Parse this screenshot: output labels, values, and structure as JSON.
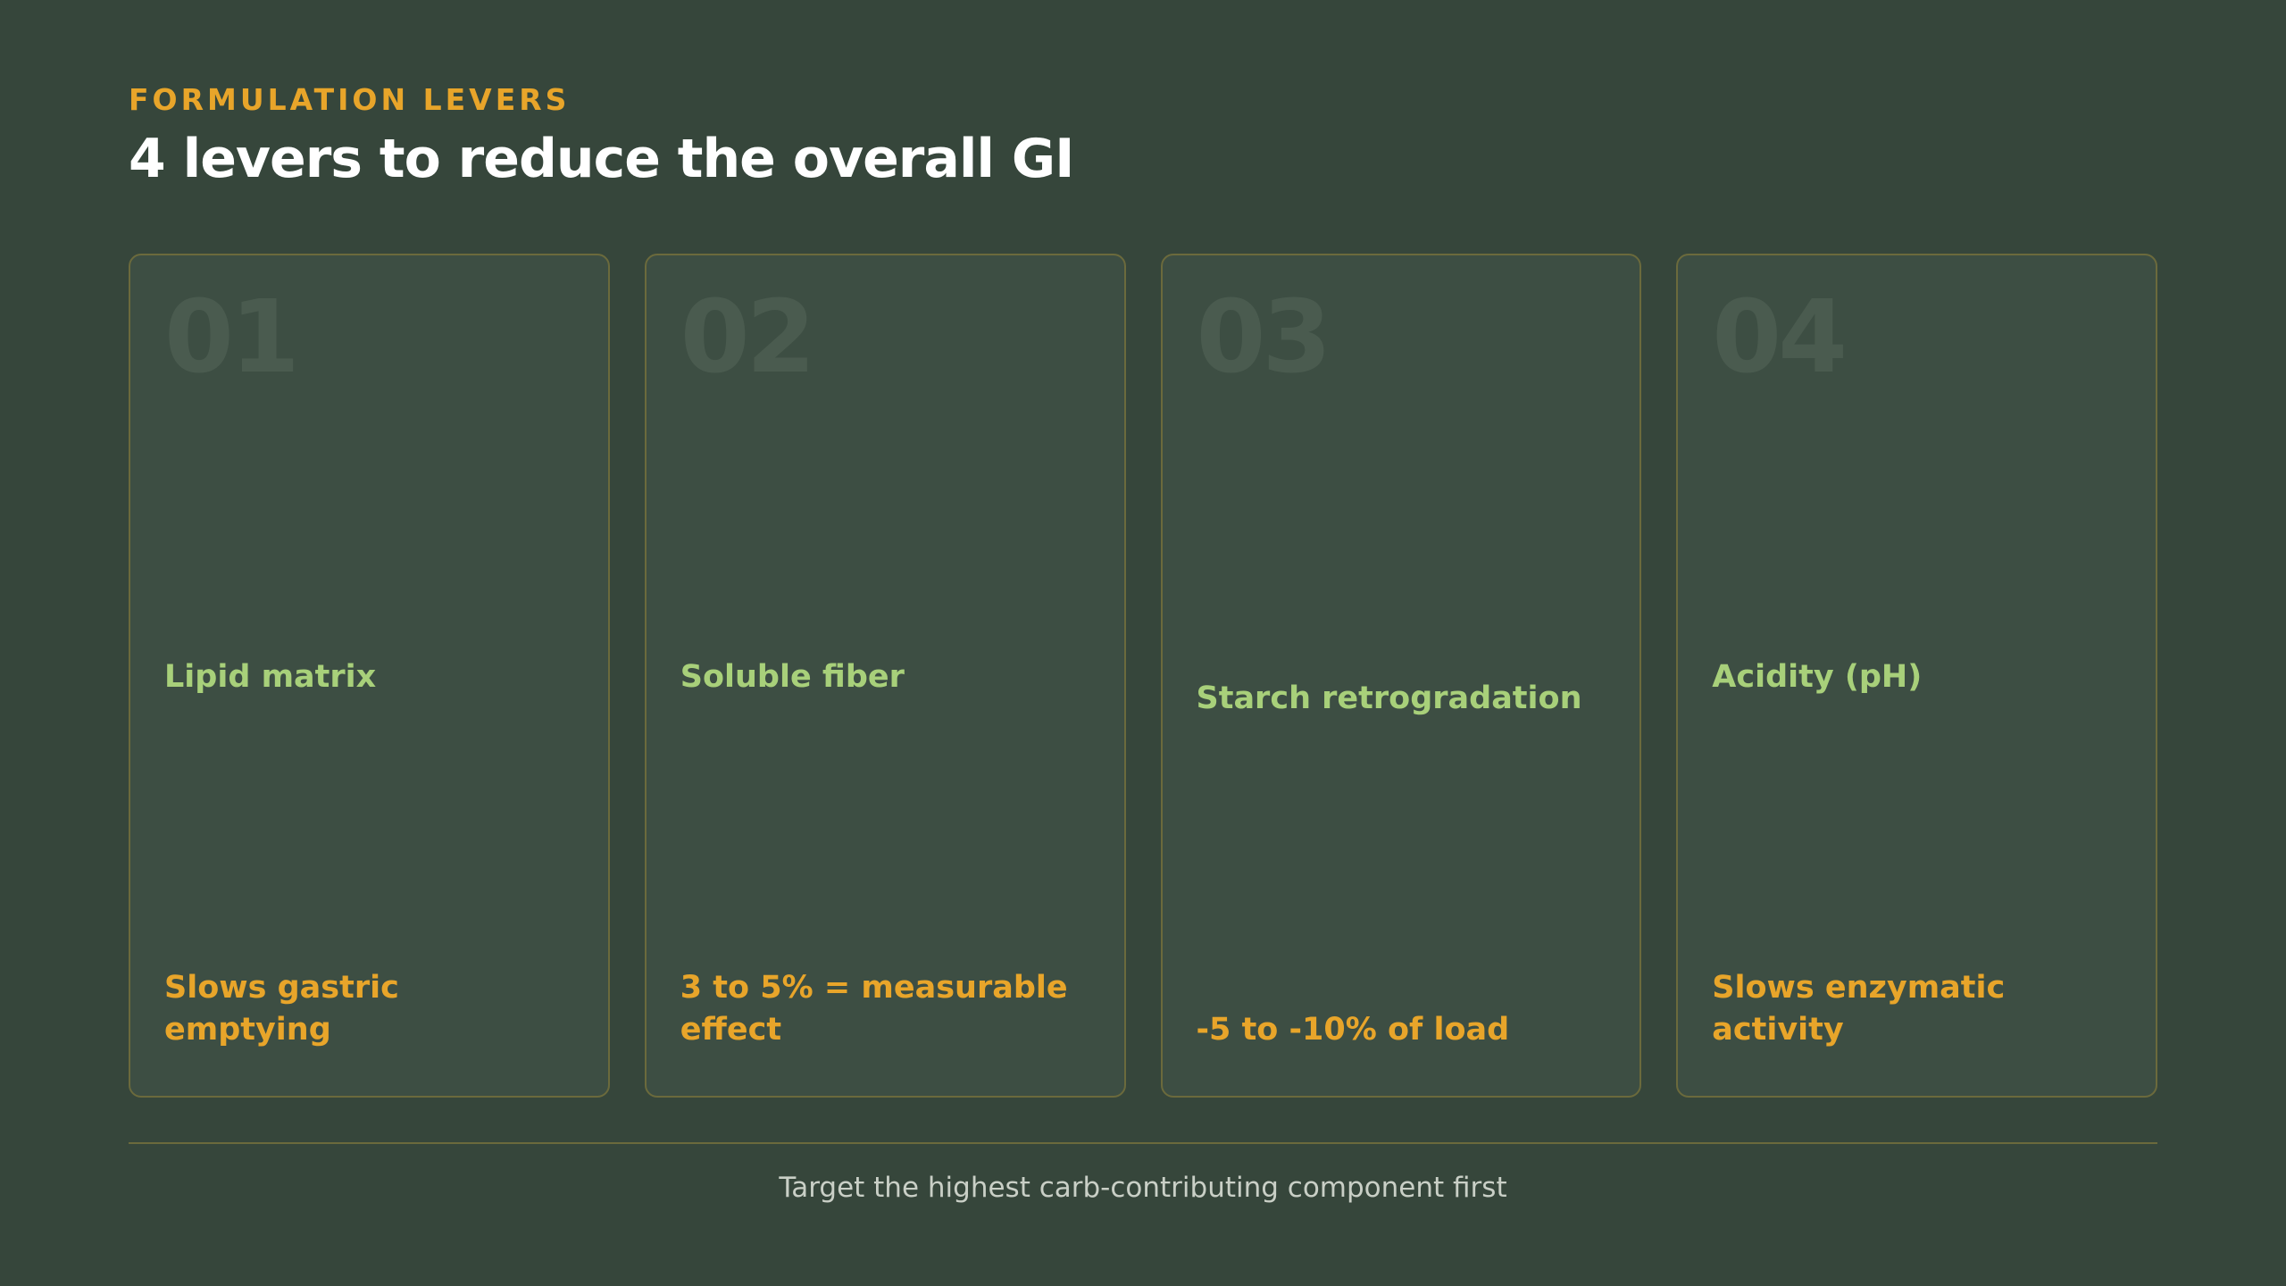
{
  "header": {
    "eyebrow": "FORMULATION LEVERS",
    "title": "4 levers to reduce the overall GI"
  },
  "cards": [
    {
      "number": "01",
      "label": "Lipid matrix",
      "detail": "Slows gastric emptying"
    },
    {
      "number": "02",
      "label": "Soluble fiber",
      "detail": "3 to 5% = measurable effect"
    },
    {
      "number": "03",
      "label": "Starch retrogradation",
      "detail": "-5 to -10% of load"
    },
    {
      "number": "04",
      "label": "Acidity (pH)",
      "detail": "Slows enzymatic activity"
    }
  ],
  "footer": "Target the highest carb-contributing component first"
}
